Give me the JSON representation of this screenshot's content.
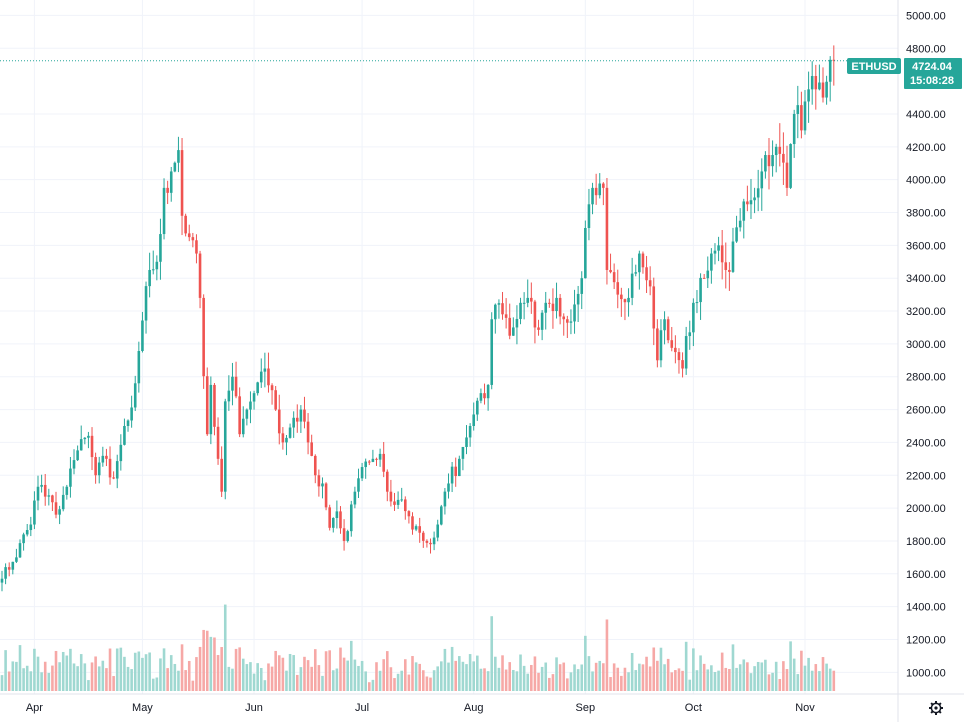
{
  "symbol_tag": "ETHUSD",
  "last_price_label": "4724.04",
  "countdown_label": "15:08:28",
  "colors": {
    "up": "#26a69a",
    "down": "#ef5350",
    "up_volume": "#9fd8d1",
    "down_volume": "#f6a8a6",
    "grid": "#f0f3fa",
    "axis_text": "#131722",
    "price_line": "#26a69a"
  },
  "icons": {
    "settings": "gear-icon"
  },
  "chart_data": {
    "type": "candlestick",
    "ylim": [
      868,
      5094
    ],
    "y_ticks": [
      "1000.00",
      "1200.00",
      "1400.00",
      "1600.00",
      "1800.00",
      "2000.00",
      "2200.00",
      "2400.00",
      "2600.00",
      "2800.00",
      "3000.00",
      "3200.00",
      "3400.00",
      "3600.00",
      "3800.00",
      "4000.00",
      "4200.00",
      "4400.00",
      "4800.00",
      "5000.00"
    ],
    "x_ticks": [
      {
        "label": "Apr",
        "date": "2021-04-01"
      },
      {
        "label": "May",
        "date": "2021-05-01"
      },
      {
        "label": "Jun",
        "date": "2021-06-01"
      },
      {
        "label": "Jul",
        "date": "2021-07-01"
      },
      {
        "label": "Aug",
        "date": "2021-08-01"
      },
      {
        "label": "Sep",
        "date": "2021-09-01"
      },
      {
        "label": "Oct",
        "date": "2021-10-01"
      },
      {
        "label": "Nov",
        "date": "2021-11-01"
      }
    ],
    "x_start": "2021-03-23",
    "x_end": "2021-11-09",
    "last_price": 4724.04,
    "anchors": [
      [
        "2021-03-23",
        1570
      ],
      [
        "2021-03-27",
        1700
      ],
      [
        "2021-03-31",
        1900
      ],
      [
        "2021-04-02",
        2130
      ],
      [
        "2021-04-07",
        1960
      ],
      [
        "2021-04-10",
        2130
      ],
      [
        "2021-04-14",
        2420
      ],
      [
        "2021-04-16",
        2440
      ],
      [
        "2021-04-18",
        2200
      ],
      [
        "2021-04-21",
        2300
      ],
      [
        "2021-04-23",
        2180
      ],
      [
        "2021-04-26",
        2500
      ],
      [
        "2021-04-29",
        2760
      ],
      [
        "2021-05-03",
        3450
      ],
      [
        "2021-05-05",
        3500
      ],
      [
        "2021-05-07",
        3950
      ],
      [
        "2021-05-09",
        4050
      ],
      [
        "2021-05-11",
        4180
      ],
      [
        "2021-05-12",
        3780
      ],
      [
        "2021-05-14",
        3650
      ],
      [
        "2021-05-16",
        3550
      ],
      [
        "2021-05-17",
        3280
      ],
      [
        "2021-05-19",
        2450
      ],
      [
        "2021-05-20",
        2750
      ],
      [
        "2021-05-22",
        2300
      ],
      [
        "2021-05-23",
        2100
      ],
      [
        "2021-05-24",
        2650
      ],
      [
        "2021-05-26",
        2800
      ],
      [
        "2021-05-28",
        2450
      ],
      [
        "2021-05-30",
        2600
      ],
      [
        "2021-06-01",
        2700
      ],
      [
        "2021-06-04",
        2850
      ],
      [
        "2021-06-07",
        2600
      ],
      [
        "2021-06-09",
        2400
      ],
      [
        "2021-06-12",
        2550
      ],
      [
        "2021-06-14",
        2600
      ],
      [
        "2021-06-16",
        2400
      ],
      [
        "2021-06-18",
        2200
      ],
      [
        "2021-06-20",
        2150
      ],
      [
        "2021-06-22",
        1880
      ],
      [
        "2021-06-24",
        1980
      ],
      [
        "2021-06-26",
        1800
      ],
      [
        "2021-06-29",
        2100
      ],
      [
        "2021-07-01",
        2250
      ],
      [
        "2021-07-04",
        2300
      ],
      [
        "2021-07-06",
        2330
      ],
      [
        "2021-07-08",
        2100
      ],
      [
        "2021-07-11",
        2050
      ],
      [
        "2021-07-14",
        1950
      ],
      [
        "2021-07-17",
        1850
      ],
      [
        "2021-07-20",
        1780
      ],
      [
        "2021-07-22",
        1900
      ],
      [
        "2021-07-25",
        2150
      ],
      [
        "2021-07-28",
        2300
      ],
      [
        "2021-07-31",
        2500
      ],
      [
        "2021-08-03",
        2700
      ],
      [
        "2021-08-05",
        2750
      ],
      [
        "2021-08-06",
        3150
      ],
      [
        "2021-08-09",
        3180
      ],
      [
        "2021-08-12",
        3100
      ],
      [
        "2021-08-14",
        3250
      ],
      [
        "2021-08-16",
        3280
      ],
      [
        "2021-08-18",
        3100
      ],
      [
        "2021-08-21",
        3250
      ],
      [
        "2021-08-24",
        3280
      ],
      [
        "2021-08-26",
        3150
      ],
      [
        "2021-08-29",
        3240
      ],
      [
        "2021-08-31",
        3400
      ],
      [
        "2021-09-02",
        3850
      ],
      [
        "2021-09-03",
        3950
      ],
      [
        "2021-09-06",
        3950
      ],
      [
        "2021-09-07",
        3450
      ],
      [
        "2021-09-10",
        3300
      ],
      [
        "2021-09-13",
        3280
      ],
      [
        "2021-09-16",
        3550
      ],
      [
        "2021-09-19",
        3350
      ],
      [
        "2021-09-21",
        2900
      ],
      [
        "2021-09-23",
        3150
      ],
      [
        "2021-09-26",
        2950
      ],
      [
        "2021-09-28",
        2850
      ],
      [
        "2021-10-01",
        3250
      ],
      [
        "2021-10-04",
        3400
      ],
      [
        "2021-10-06",
        3550
      ],
      [
        "2021-10-08",
        3600
      ],
      [
        "2021-10-10",
        3450
      ],
      [
        "2021-10-14",
        3750
      ],
      [
        "2021-10-16",
        3850
      ],
      [
        "2021-10-20",
        4050
      ],
      [
        "2021-10-21",
        4150
      ],
      [
        "2021-10-23",
        4150
      ],
      [
        "2021-10-24",
        4200
      ],
      [
        "2021-10-27",
        3950
      ],
      [
        "2021-10-29",
        4400
      ],
      [
        "2021-10-31",
        4300
      ],
      [
        "2021-11-02",
        4550
      ],
      [
        "2021-11-04",
        4550
      ],
      [
        "2021-11-06",
        4500
      ],
      [
        "2021-11-08",
        4730
      ]
    ],
    "volume_ylim": [
      0,
      1400
    ],
    "volume_range": [
      100,
      1100
    ]
  }
}
